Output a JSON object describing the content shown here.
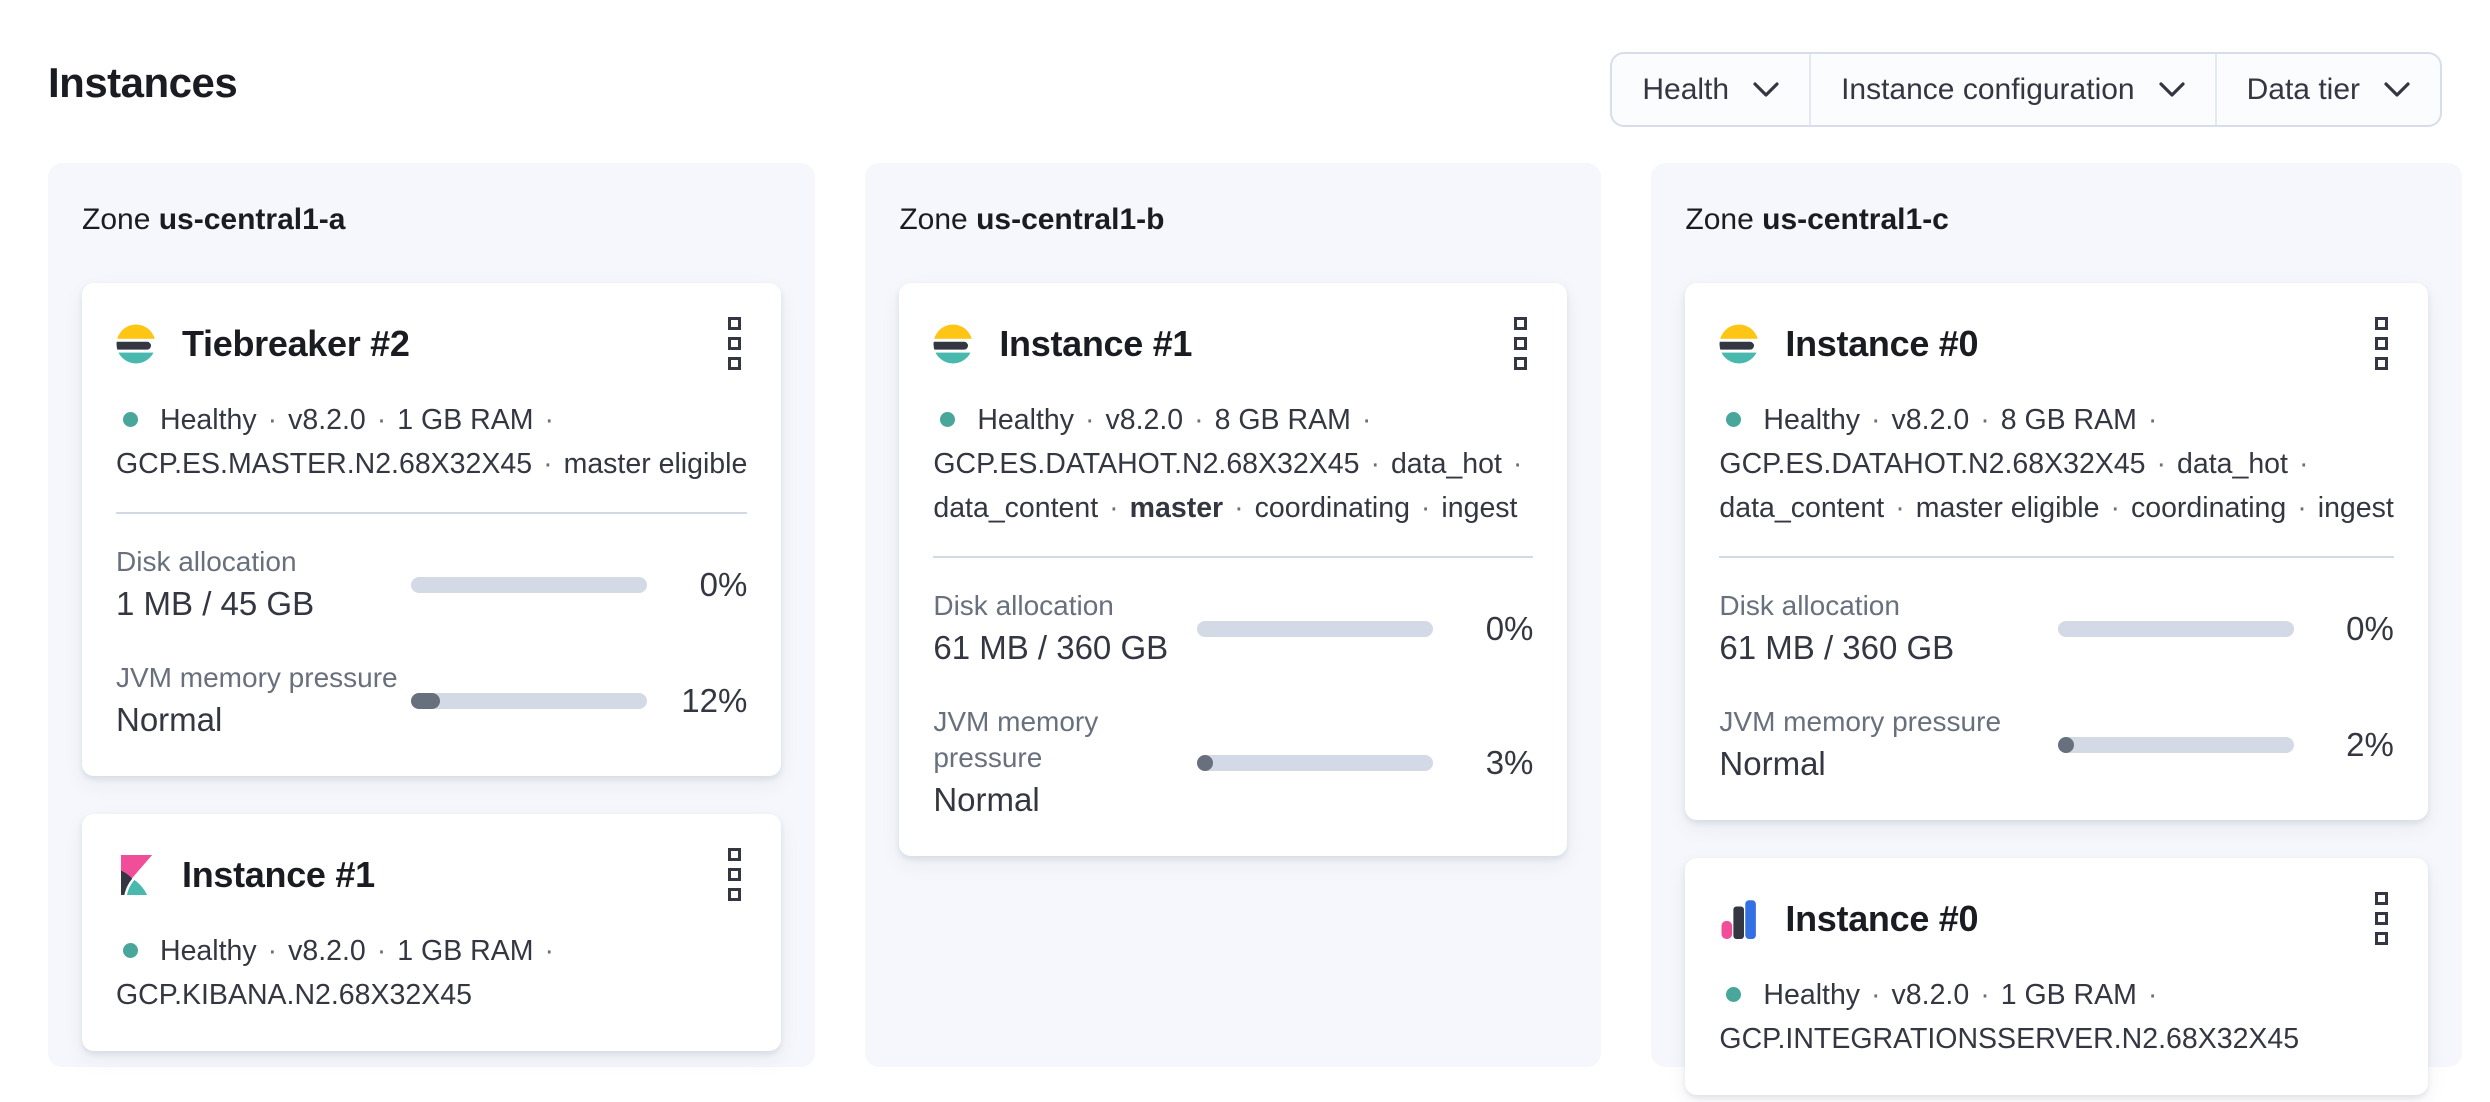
{
  "page": {
    "title": "Instances"
  },
  "filters": [
    {
      "label": "Health"
    },
    {
      "label": "Instance configuration"
    },
    {
      "label": "Data tier"
    }
  ],
  "colors": {
    "health_dot": "#48a79a",
    "bar_track": "#d3dae6",
    "bar_fill": "#69707d",
    "panel_bg": "#f5f7fc",
    "es_yellow": "#fec514",
    "es_dark": "#343741",
    "es_teal": "#49b8ae",
    "kibana_pink": "#f04e98",
    "integrations_blue": "#3370e3"
  },
  "zones": [
    {
      "label": "Zone",
      "name": "us-central1-a",
      "cards": [
        {
          "logo": "elasticsearch",
          "title": "Tiebreaker #2",
          "lines": [
            {
              "dot": true,
              "parts": [
                {
                  "t": "Healthy"
                },
                {
                  "t": "·",
                  "sep": true
                },
                {
                  "t": "v8.2.0"
                },
                {
                  "t": "·",
                  "sep": true
                },
                {
                  "t": "1 GB RAM"
                },
                {
                  "t": "·",
                  "sep": true
                }
              ]
            },
            {
              "dot": false,
              "parts": [
                {
                  "t": "GCP.ES.MASTER.N2.68X32X45"
                },
                {
                  "t": "·",
                  "sep": true
                },
                {
                  "t": "master eligible"
                }
              ]
            }
          ],
          "metrics": [
            {
              "label": "Disk allocation",
              "value": "1 MB / 45 GB",
              "percent": "0%",
              "fill_pct": 0
            },
            {
              "label": "JVM memory pressure",
              "value": "Normal",
              "percent": "12%",
              "fill_pct": 12
            }
          ]
        },
        {
          "logo": "kibana",
          "title": "Instance #1",
          "lines": [
            {
              "dot": true,
              "parts": [
                {
                  "t": "Healthy"
                },
                {
                  "t": "·",
                  "sep": true
                },
                {
                  "t": "v8.2.0"
                },
                {
                  "t": "·",
                  "sep": true
                },
                {
                  "t": "1 GB RAM"
                },
                {
                  "t": "·",
                  "sep": true
                }
              ]
            },
            {
              "dot": false,
              "parts": [
                {
                  "t": "GCP.KIBANA.N2.68X32X45"
                }
              ]
            }
          ],
          "metrics": []
        }
      ]
    },
    {
      "label": "Zone",
      "name": "us-central1-b",
      "cards": [
        {
          "logo": "elasticsearch",
          "title": "Instance #1",
          "lines": [
            {
              "dot": true,
              "parts": [
                {
                  "t": "Healthy"
                },
                {
                  "t": "·",
                  "sep": true
                },
                {
                  "t": "v8.2.0"
                },
                {
                  "t": "·",
                  "sep": true
                },
                {
                  "t": "8 GB RAM"
                },
                {
                  "t": "·",
                  "sep": true
                }
              ]
            },
            {
              "dot": false,
              "parts": [
                {
                  "t": "GCP.ES.DATAHOT.N2.68X32X45"
                },
                {
                  "t": "·",
                  "sep": true
                },
                {
                  "t": "data_hot"
                },
                {
                  "t": "·",
                  "sep": true
                }
              ]
            },
            {
              "dot": false,
              "parts": [
                {
                  "t": "data_content"
                },
                {
                  "t": "·",
                  "sep": true
                },
                {
                  "t": "master",
                  "bold": true
                },
                {
                  "t": "·",
                  "sep": true
                },
                {
                  "t": "coordinating"
                },
                {
                  "t": "·",
                  "sep": true
                },
                {
                  "t": "ingest"
                }
              ]
            }
          ],
          "metrics": [
            {
              "label": "Disk allocation",
              "value": "61 MB / 360 GB",
              "percent": "0%",
              "fill_pct": 0
            },
            {
              "label": "JVM memory pressure",
              "value": "Normal",
              "percent": "3%",
              "fill_pct": 3
            }
          ]
        }
      ]
    },
    {
      "label": "Zone",
      "name": "us-central1-c",
      "cards": [
        {
          "logo": "elasticsearch",
          "title": "Instance #0",
          "lines": [
            {
              "dot": true,
              "parts": [
                {
                  "t": "Healthy"
                },
                {
                  "t": "·",
                  "sep": true
                },
                {
                  "t": "v8.2.0"
                },
                {
                  "t": "·",
                  "sep": true
                },
                {
                  "t": "8 GB RAM"
                },
                {
                  "t": "·",
                  "sep": true
                }
              ]
            },
            {
              "dot": false,
              "parts": [
                {
                  "t": "GCP.ES.DATAHOT.N2.68X32X45"
                },
                {
                  "t": "·",
                  "sep": true
                },
                {
                  "t": "data_hot"
                },
                {
                  "t": "·",
                  "sep": true
                }
              ]
            },
            {
              "dot": false,
              "parts": [
                {
                  "t": "data_content"
                },
                {
                  "t": "·",
                  "sep": true
                },
                {
                  "t": "master eligible"
                },
                {
                  "t": "·",
                  "sep": true
                },
                {
                  "t": "coordinating"
                },
                {
                  "t": "·",
                  "sep": true
                },
                {
                  "t": "ingest"
                }
              ]
            }
          ],
          "metrics": [
            {
              "label": "Disk allocation",
              "value": "61 MB / 360 GB",
              "percent": "0%",
              "fill_pct": 0
            },
            {
              "label": "JVM memory pressure",
              "value": "Normal",
              "percent": "2%",
              "fill_pct": 2
            }
          ]
        },
        {
          "logo": "integrations_server",
          "title": "Instance #0",
          "lines": [
            {
              "dot": true,
              "parts": [
                {
                  "t": "Healthy"
                },
                {
                  "t": "·",
                  "sep": true
                },
                {
                  "t": "v8.2.0"
                },
                {
                  "t": "·",
                  "sep": true
                },
                {
                  "t": "1 GB RAM"
                },
                {
                  "t": "·",
                  "sep": true
                }
              ]
            },
            {
              "dot": false,
              "parts": [
                {
                  "t": "GCP.INTEGRATIONSSERVER.N2.68X32X45"
                }
              ]
            }
          ],
          "metrics": []
        }
      ]
    }
  ]
}
